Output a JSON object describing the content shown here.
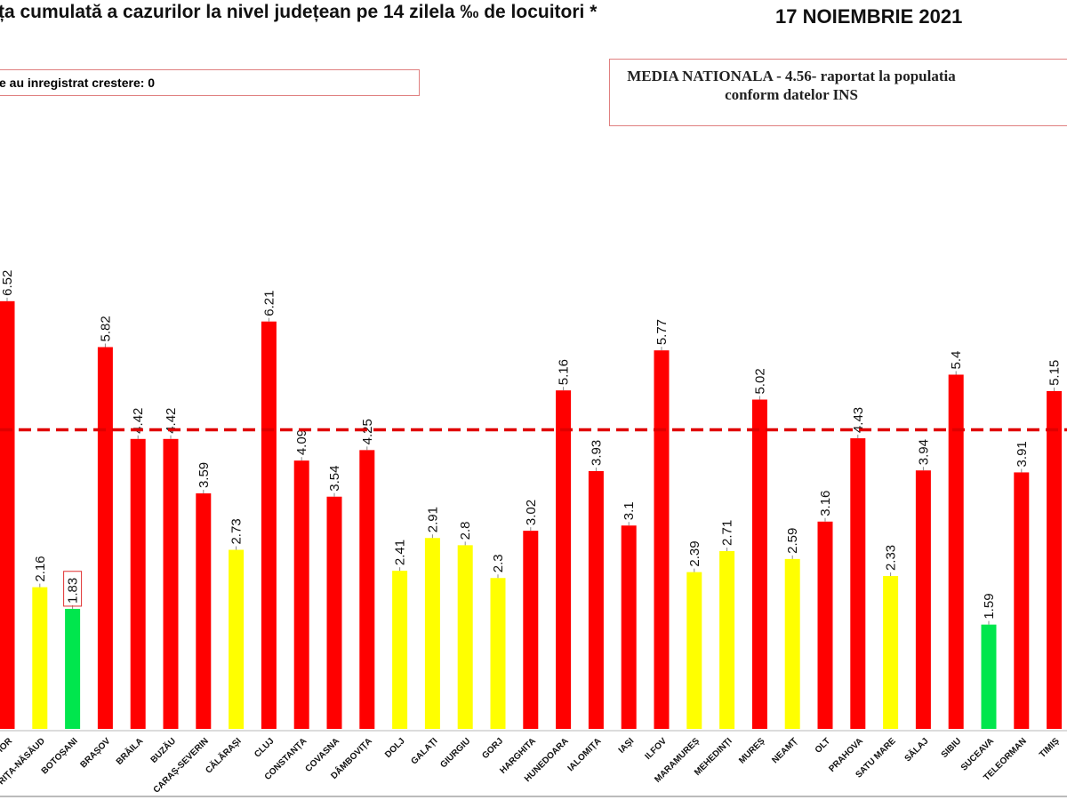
{
  "title": "ța cumulată a cazurilor la nivel județean pe 14 zilela ‰ de locuitori *",
  "date": "17 NOIEMBRIE 2021",
  "growth_note": "e au inregistrat crestere: 0",
  "media_note": {
    "line1": "MEDIA NATIONALA  - 4.56-  raportat la populatia",
    "line2": "conform datelor INS"
  },
  "colors": {
    "above": "#ff0000",
    "mid": "#ffff00",
    "low": "#00e64d",
    "reference": "#e00000"
  },
  "chart_data": {
    "type": "bar",
    "reference_line": {
      "value": 4.56,
      "style": "dashed",
      "color": "#e00000"
    },
    "ylim": [
      0,
      6.6
    ],
    "grid": false,
    "categories": [
      "BIHOR",
      "BISTRIȚA-NĂSĂUD",
      "BOTOȘANI",
      "BRAȘOV",
      "BRĂILA",
      "BUZĂU",
      "CARAȘ-SEVERIN",
      "CĂLĂRAȘI",
      "CLUJ",
      "CONSTANȚA",
      "COVASNA",
      "DÂMBOVIȚA",
      "DOLJ",
      "GALAȚI",
      "GIURGIU",
      "GORJ",
      "HARGHITA",
      "HUNEDOARA",
      "IALOMIȚA",
      "IAȘI",
      "ILFOV",
      "MARAMUREȘ",
      "MEHEDINȚI",
      "MUREȘ",
      "NEAMȚ",
      "OLT",
      "PRAHOVA",
      "SATU MARE",
      "SĂLAJ",
      "SIBIU",
      "SUCEAVA",
      "TELEORMAN",
      "TIMIȘ"
    ],
    "values": [
      6.52,
      2.16,
      1.83,
      5.82,
      4.42,
      4.42,
      3.59,
      2.73,
      6.21,
      4.09,
      3.54,
      4.25,
      2.41,
      2.91,
      2.8,
      2.3,
      3.02,
      5.16,
      3.93,
      3.1,
      5.77,
      2.39,
      2.71,
      5.02,
      2.59,
      3.16,
      4.43,
      2.33,
      3.94,
      5.4,
      1.59,
      3.91,
      5.15
    ],
    "value_labels": [
      "6.52",
      "2.16",
      "1.83",
      "5.82",
      "4.42",
      "4.42",
      "3.59",
      "2.73",
      "6.21",
      "4.09",
      "3.54",
      "4.25",
      "2.41",
      "2.91",
      "2.8",
      "2.3",
      "3.02",
      "5.16",
      "3.93",
      "3.1",
      "5.77",
      "2.39",
      "2.71",
      "5.02",
      "2.59",
      "3.16",
      "4.43",
      "2.33",
      "3.94",
      "5.4",
      "1.59",
      "3.91",
      "5.15"
    ],
    "bar_colors": [
      "red",
      "yellow",
      "green",
      "red",
      "red",
      "red",
      "red",
      "yellow",
      "red",
      "red",
      "red",
      "red",
      "yellow",
      "yellow",
      "yellow",
      "yellow",
      "red",
      "red",
      "red",
      "red",
      "red",
      "yellow",
      "yellow",
      "red",
      "yellow",
      "red",
      "red",
      "yellow",
      "red",
      "red",
      "green",
      "red",
      "red"
    ],
    "highlighted": [
      "BOTOȘANI"
    ]
  }
}
